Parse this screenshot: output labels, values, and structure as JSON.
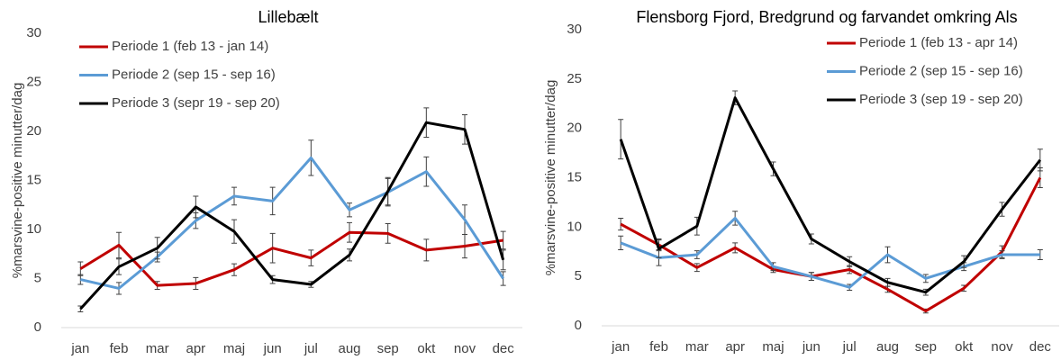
{
  "chart_data": [
    {
      "type": "line",
      "title": "Lillebælt",
      "y_label": "%marsvine-positive minutter/dag",
      "categories": [
        "jan",
        "feb",
        "mar",
        "apr",
        "maj",
        "jun",
        "jul",
        "aug",
        "sep",
        "okt",
        "nov",
        "dec"
      ],
      "ylim": [
        0,
        30
      ],
      "yticks": [
        0,
        5,
        10,
        15,
        20,
        25,
        30
      ],
      "grid": false,
      "legend": "top-left",
      "series": [
        {
          "name": "Periode 1 (feb 13 - jan 14)",
          "color": "#c00000",
          "values": [
            6.0,
            8.4,
            4.3,
            4.5,
            5.9,
            8.1,
            7.1,
            9.7,
            9.6,
            7.9,
            8.3,
            8.9
          ],
          "errors": [
            0.7,
            1.3,
            0.4,
            0.6,
            0.6,
            1.5,
            0.8,
            1.0,
            1.0,
            1.1,
            1.2,
            0.9
          ]
        },
        {
          "name": "Periode 2 (sep 15 - sep 16)",
          "color": "#5b9bd5",
          "values": [
            4.9,
            4.0,
            7.2,
            10.9,
            13.4,
            12.9,
            17.3,
            12.0,
            13.8,
            15.9,
            11.0,
            5.0
          ],
          "errors": [
            0.5,
            0.6,
            0.5,
            0.8,
            0.9,
            1.4,
            1.8,
            0.7,
            1.4,
            1.5,
            1.5,
            0.7
          ]
        },
        {
          "name": "Periode 3 (sepr 19 - sep 20)",
          "color": "#000000",
          "values": [
            1.9,
            6.2,
            8.1,
            12.3,
            9.8,
            4.9,
            4.4,
            7.4,
            13.9,
            20.9,
            20.2,
            6.9
          ],
          "errors": [
            0.3,
            0.8,
            1.1,
            1.1,
            1.2,
            0.4,
            0.3,
            0.6,
            1.4,
            1.5,
            1.5,
            1.0
          ]
        }
      ]
    },
    {
      "type": "line",
      "title": "Flensborg Fjord, Bredgrund og farvandet omkring Als",
      "y_label": "%marsvine-positive minutter/dag",
      "categories": [
        "jan",
        "feb",
        "mar",
        "apr",
        "maj",
        "jun",
        "jul",
        "aug",
        "sep",
        "okt",
        "nov",
        "dec"
      ],
      "ylim": [
        0,
        30
      ],
      "yticks": [
        0,
        5,
        10,
        15,
        20,
        25,
        30
      ],
      "grid": false,
      "legend": "top-right",
      "series": [
        {
          "name": "Periode 1 (feb 13 - apr 14)",
          "color": "#c00000",
          "values": [
            10.3,
            8.2,
            5.9,
            7.9,
            5.7,
            5.0,
            5.7,
            3.7,
            1.5,
            3.8,
            7.5,
            15.0
          ],
          "errors": [
            0.6,
            0.6,
            0.4,
            0.5,
            0.3,
            0.4,
            0.4,
            0.3,
            0.2,
            0.3,
            0.6,
            1.0
          ]
        },
        {
          "name": "Periode 2 (sep 15 - sep 16)",
          "color": "#5b9bd5",
          "values": [
            8.4,
            6.9,
            7.2,
            10.9,
            6.0,
            5.0,
            3.9,
            7.2,
            4.8,
            6.0,
            7.2,
            7.2
          ],
          "errors": [
            0.7,
            0.8,
            0.4,
            0.7,
            0.4,
            0.4,
            0.3,
            0.8,
            0.4,
            0.4,
            0.4,
            0.5
          ]
        },
        {
          "name": "Periode 3 (sep 19 - sep 20)",
          "color": "#000000",
          "values": [
            18.9,
            7.8,
            10.1,
            23.1,
            15.9,
            8.8,
            6.5,
            4.4,
            3.4,
            6.5,
            11.8,
            16.8
          ],
          "errors": [
            2.0,
            0.9,
            0.9,
            0.7,
            0.7,
            0.5,
            0.5,
            0.4,
            0.3,
            0.6,
            0.7,
            1.1
          ]
        }
      ]
    }
  ]
}
